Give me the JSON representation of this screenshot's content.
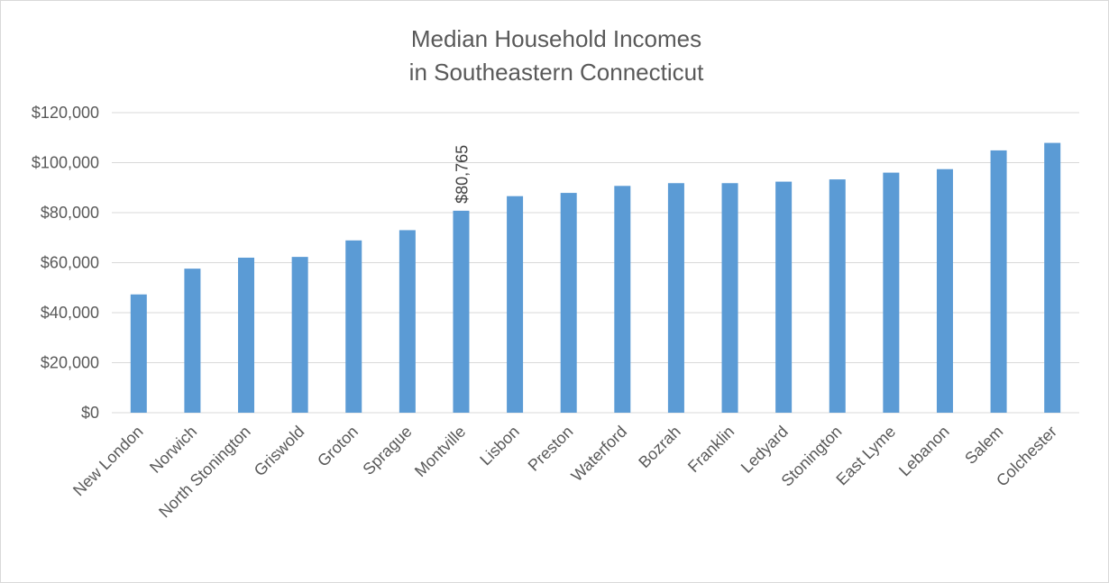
{
  "chart_data": {
    "type": "bar",
    "title_lines": [
      "Median Household Incomes",
      "in Southeastern Connecticut"
    ],
    "xlabel": "",
    "ylabel": "",
    "categories": [
      "New London",
      "Norwich",
      "North Stonington",
      "Griswold",
      "Groton",
      "Sprague",
      "Montville",
      "Lisbon",
      "Preston",
      "Waterford",
      "Bozrah",
      "Franklin",
      "Ledyard",
      "Stonington",
      "East Lyme",
      "Lebanon",
      "Salem",
      "Colchester"
    ],
    "values": [
      47300,
      57600,
      62000,
      62300,
      68900,
      73000,
      80765,
      86600,
      87900,
      90700,
      91800,
      91800,
      92400,
      93300,
      96000,
      97400,
      104900,
      107900
    ],
    "ylim": [
      0,
      120000
    ],
    "yticks": [
      0,
      20000,
      40000,
      60000,
      80000,
      100000,
      120000
    ],
    "ytick_labels": [
      "$0",
      "$20,000",
      "$40,000",
      "$60,000",
      "$80,000",
      "$100,000",
      "$120,000"
    ],
    "data_labels": [
      {
        "category": "Montville",
        "text": "$80,765"
      }
    ],
    "bar_color": "#5b9bd5",
    "grid": true,
    "legend": "none"
  }
}
